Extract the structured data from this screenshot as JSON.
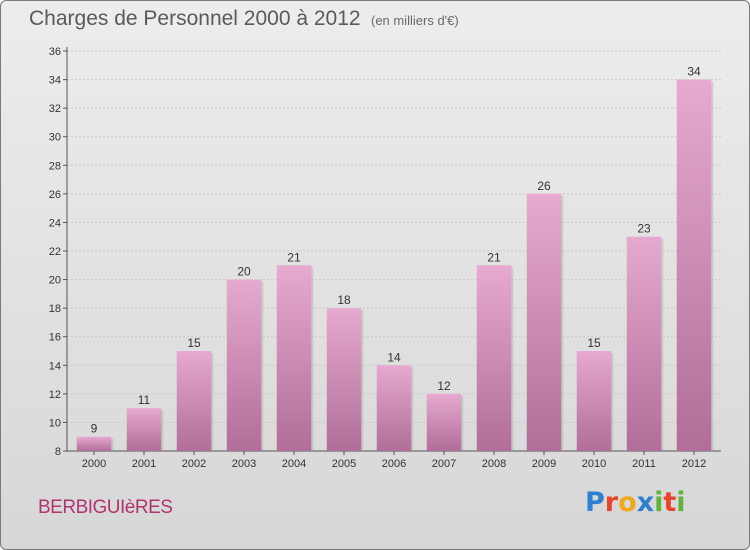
{
  "header": {
    "title": "Charges de Personnel 2000 à 2012",
    "subtitle": "(en milliers d'€)"
  },
  "footer": {
    "commune": "BERBIGUIèRES",
    "brand": "Proxiti",
    "brand_letters": [
      {
        "ch": "P",
        "color": "#2f7fd1"
      },
      {
        "ch": "r",
        "color": "#e9442b"
      },
      {
        "ch": "o",
        "color": "#f2a81d"
      },
      {
        "ch": "x",
        "color": "#2f7fd1"
      },
      {
        "ch": "i",
        "color": "#61b33b"
      },
      {
        "ch": "t",
        "color": "#e9442b"
      },
      {
        "ch": "i",
        "color": "#61b33b"
      }
    ]
  },
  "colors": {
    "bar_light": "#e7a9d0",
    "bar_dark": "#b06e98",
    "grid": "#c8c8c8",
    "axis": "#555555"
  },
  "chart_data": {
    "type": "bar",
    "title": "Charges de Personnel 2000 à 2012",
    "subtitle": "(en milliers d'€)",
    "categories": [
      "2000",
      "2001",
      "2002",
      "2003",
      "2004",
      "2005",
      "2006",
      "2007",
      "2008",
      "2009",
      "2010",
      "2011",
      "2012"
    ],
    "values": [
      9,
      11,
      15,
      20,
      21,
      18,
      14,
      12,
      21,
      26,
      15,
      23,
      34
    ],
    "ylim": [
      8,
      36
    ],
    "yticks": [
      8,
      10,
      12,
      14,
      16,
      18,
      20,
      22,
      24,
      26,
      28,
      30,
      32,
      34,
      36
    ],
    "grid": true,
    "data_labels": true
  }
}
